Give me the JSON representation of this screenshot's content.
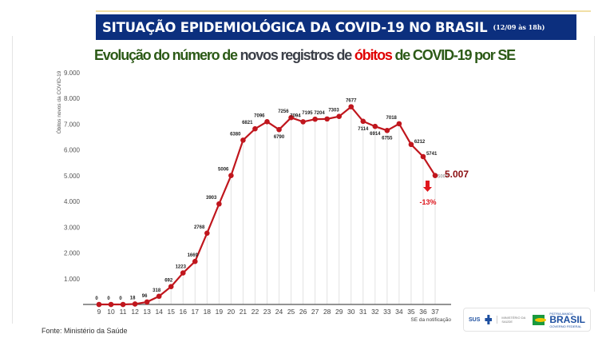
{
  "header": {
    "title": "SITUAÇÃO EPIDEMIOLÓGICA DA COVID-19 NO BRASIL",
    "date": "(12/09 às 18h)"
  },
  "subtitle": {
    "part1": "Evolução do número de ",
    "part2": "novos registros de ",
    "part3": "óbitos",
    "part4": " de COVID-19 por SE"
  },
  "chart_data": {
    "type": "line",
    "ylabel": "Óbitos novos da COVID-19",
    "xlabel": "SE da notificação",
    "ylim": [
      0,
      9000
    ],
    "yticks": [
      "1.000",
      "2.000",
      "3.000",
      "4.000",
      "5.000",
      "6.000",
      "7.000",
      "8.000",
      "9.000"
    ],
    "categories": [
      "9",
      "10",
      "11",
      "12",
      "13",
      "14",
      "15",
      "16",
      "17",
      "18",
      "19",
      "20",
      "21",
      "22",
      "23",
      "24",
      "25",
      "26",
      "27",
      "28",
      "29",
      "30",
      "31",
      "32",
      "33",
      "34",
      "35",
      "36",
      "37"
    ],
    "values": [
      0,
      0,
      0,
      18,
      96,
      318,
      692,
      1223,
      1669,
      2768,
      3903,
      5006,
      6380,
      6821,
      7096,
      6790,
      7256,
      7094,
      7195,
      7204,
      7303,
      7677,
      7114,
      6914,
      6755,
      7018,
      6212,
      5741,
      5007
    ],
    "series_color": "#c0161d",
    "grid": "vertical",
    "annotations": {
      "last_value": "5.007",
      "change": "-13%",
      "arrow": "down-arrow-icon"
    }
  },
  "footer": {
    "source": "Fonte: Ministério da Saúde",
    "logos": {
      "sus": "SUS",
      "ministry": "MINISTÉRIO DA SAÚDE",
      "slogan": "PÁTRIA AMADA",
      "brasil": "BRASIL",
      "gov": "GOVERNO FEDERAL"
    }
  }
}
